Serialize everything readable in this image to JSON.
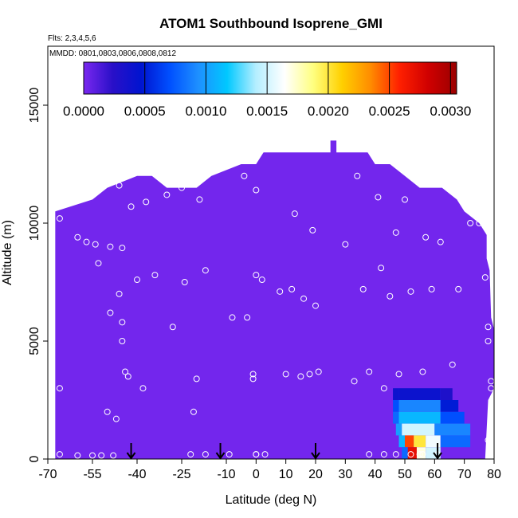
{
  "chart_data": {
    "type": "heatmap",
    "title": "ATOM1 Southbound Isoprene_GMI",
    "annotations": [
      "Flts: 2,3,4,5,6",
      "MMDD: 0801,0803,0806,0808,0812"
    ],
    "xlabel": "Latitude (deg N)",
    "ylabel": "Altitude (m)",
    "xlim": [
      -70,
      80
    ],
    "ylim": [
      0,
      17500
    ],
    "x_ticks": [
      "-70",
      "-55",
      "-40",
      "-25",
      "-10",
      "0",
      "10",
      "20",
      "30",
      "40",
      "50",
      "60",
      "70",
      "80"
    ],
    "x_tick_values": [
      -70,
      -55,
      -40,
      -25,
      -10,
      0,
      10,
      20,
      30,
      40,
      50,
      60,
      70,
      80
    ],
    "y_ticks": [
      "0",
      "5000",
      "10000",
      "15000"
    ],
    "y_tick_values": [
      0,
      5000,
      10000,
      15000
    ],
    "colorbar": {
      "min": 0,
      "max": 0.00305,
      "ticks": [
        "0.0000",
        "0.0005",
        "0.0010",
        "0.0015",
        "0.0020",
        "0.0025",
        "0.0030"
      ],
      "tick_values": [
        0,
        0.0005,
        0.001,
        0.0015,
        0.002,
        0.0025,
        0.003
      ],
      "colors": [
        "#7a28f0",
        "#2a10c8",
        "#0014d0",
        "#0050ff",
        "#1e90ff",
        "#00c8ff",
        "#b4eeff",
        "#ffffff",
        "#ffff80",
        "#ffd000",
        "#ff8c00",
        "#ff2000",
        "#d00000",
        "#9a0000"
      ]
    },
    "background_value": 2e-05,
    "domain_top": [
      [
        -67.5,
        10500
      ],
      [
        -55,
        11000
      ],
      [
        -50,
        11500
      ],
      [
        -40,
        12000
      ],
      [
        -35,
        12000
      ],
      [
        -30,
        11500
      ],
      [
        -20,
        11500
      ],
      [
        -15,
        12000
      ],
      [
        -5,
        12500
      ],
      [
        0,
        12500
      ],
      [
        2.5,
        13000
      ],
      [
        25,
        13000
      ],
      [
        25,
        13500
      ],
      [
        27,
        13500
      ],
      [
        27,
        13000
      ],
      [
        37.5,
        13000
      ],
      [
        40,
        12500
      ],
      [
        45,
        12500
      ],
      [
        50,
        12000
      ],
      [
        55,
        11500
      ],
      [
        62.5,
        11500
      ],
      [
        67.5,
        11000
      ],
      [
        70,
        10500
      ],
      [
        75,
        10000
      ],
      [
        77.5,
        9500
      ],
      [
        77.5,
        8500
      ],
      [
        78.5,
        8000
      ],
      [
        79,
        6000
      ],
      [
        80,
        5500
      ],
      [
        80,
        3000
      ],
      [
        78,
        2500
      ],
      [
        77,
        0
      ]
    ],
    "arrows_x": [
      -42,
      -12,
      20,
      61
    ],
    "enhancement": [
      {
        "lat_range": [
          46,
          48
        ],
        "alt_range": [
          2500,
          3000
        ],
        "value": 0.0004
      },
      {
        "lat_range": [
          48,
          62
        ],
        "alt_range": [
          2500,
          3000
        ],
        "value": 0.0004
      },
      {
        "lat_range": [
          62,
          66
        ],
        "alt_range": [
          2500,
          3000
        ],
        "value": 0.0003
      },
      {
        "lat_range": [
          46,
          48
        ],
        "alt_range": [
          2000,
          2500
        ],
        "value": 0.0007
      },
      {
        "lat_range": [
          48,
          62
        ],
        "alt_range": [
          2000,
          2500
        ],
        "value": 0.0009
      },
      {
        "lat_range": [
          62,
          68
        ],
        "alt_range": [
          2000,
          2500
        ],
        "value": 0.0005
      },
      {
        "lat_range": [
          46,
          48
        ],
        "alt_range": [
          1500,
          2000
        ],
        "value": 0.0008
      },
      {
        "lat_range": [
          48,
          62
        ],
        "alt_range": [
          1500,
          2000
        ],
        "value": 0.0011
      },
      {
        "lat_range": [
          62,
          70
        ],
        "alt_range": [
          1500,
          2000
        ],
        "value": 0.0007
      },
      {
        "lat_range": [
          47,
          49
        ],
        "alt_range": [
          1000,
          1500
        ],
        "value": 0.001
      },
      {
        "lat_range": [
          49,
          60
        ],
        "alt_range": [
          1000,
          1500
        ],
        "value": 0.0015
      },
      {
        "lat_range": [
          60,
          72
        ],
        "alt_range": [
          1000,
          1500
        ],
        "value": 0.0009
      },
      {
        "lat_range": [
          48,
          50
        ],
        "alt_range": [
          500,
          1000
        ],
        "value": 0.0011
      },
      {
        "lat_range": [
          50,
          53
        ],
        "alt_range": [
          500,
          1000
        ],
        "value": 0.0025
      },
      {
        "lat_range": [
          53,
          57
        ],
        "alt_range": [
          500,
          1000
        ],
        "value": 0.002
      },
      {
        "lat_range": [
          57,
          62
        ],
        "alt_range": [
          500,
          1000
        ],
        "value": 0.0016
      },
      {
        "lat_range": [
          62,
          72
        ],
        "alt_range": [
          500,
          1000
        ],
        "value": 0.0008
      },
      {
        "lat_range": [
          49,
          51
        ],
        "alt_range": [
          0,
          500
        ],
        "value": 0.0008
      },
      {
        "lat_range": [
          51,
          54
        ],
        "alt_range": [
          0,
          500
        ],
        "value": 0.0027
      },
      {
        "lat_range": [
          54,
          57
        ],
        "alt_range": [
          0,
          500
        ],
        "value": 0.0017
      },
      {
        "lat_range": [
          57,
          62
        ],
        "alt_range": [
          0,
          500
        ],
        "value": 0.0015
      }
    ],
    "obs_points": [
      [
        -66,
        10200
      ],
      [
        -60,
        9400
      ],
      [
        -57,
        9200
      ],
      [
        -54,
        9100
      ],
      [
        -49,
        9000
      ],
      [
        -45,
        8950
      ],
      [
        -53,
        8300
      ],
      [
        -50,
        2000
      ],
      [
        -47,
        1700
      ],
      [
        -60,
        150
      ],
      [
        -55,
        150
      ],
      [
        -52,
        150
      ],
      [
        -48,
        150
      ],
      [
        -46,
        11600
      ],
      [
        -42,
        10700
      ],
      [
        -37,
        10900
      ],
      [
        -30,
        11200
      ],
      [
        -25,
        11500
      ],
      [
        -19,
        11000
      ],
      [
        -40,
        7600
      ],
      [
        -34,
        7800
      ],
      [
        -24,
        7500
      ],
      [
        -17,
        8000
      ],
      [
        -46,
        7000
      ],
      [
        -49,
        6200
      ],
      [
        -45,
        5800
      ],
      [
        -45,
        5000
      ],
      [
        -28,
        5600
      ],
      [
        -44,
        3700
      ],
      [
        -43,
        3500
      ],
      [
        -38,
        3000
      ],
      [
        -20,
        3400
      ],
      [
        -21,
        2000
      ],
      [
        -22,
        200
      ],
      [
        -17,
        200
      ],
      [
        -9,
        200
      ],
      [
        -3,
        6000
      ],
      [
        -8,
        6000
      ],
      [
        -4,
        12000
      ],
      [
        0,
        11400
      ],
      [
        0,
        7800
      ],
      [
        2,
        7600
      ],
      [
        8,
        7100
      ],
      [
        -1,
        3600
      ],
      [
        -1,
        3400
      ],
      [
        0,
        200
      ],
      [
        0,
        200
      ],
      [
        3,
        200
      ],
      [
        10,
        3600
      ],
      [
        15,
        3500
      ],
      [
        18,
        3600
      ],
      [
        21,
        3700
      ],
      [
        12,
        7200
      ],
      [
        16,
        6800
      ],
      [
        20,
        6500
      ],
      [
        13,
        10400
      ],
      [
        19,
        9700
      ],
      [
        30,
        9100
      ],
      [
        33,
        3300
      ],
      [
        36,
        7200
      ],
      [
        34,
        12000
      ],
      [
        41,
        11100
      ],
      [
        42,
        8100
      ],
      [
        45,
        6900
      ],
      [
        47,
        9600
      ],
      [
        50,
        11000
      ],
      [
        52,
        7100
      ],
      [
        57,
        9400
      ],
      [
        62,
        9200
      ],
      [
        59,
        7200
      ],
      [
        68,
        7200
      ],
      [
        70,
        11400
      ],
      [
        72,
        10000
      ],
      [
        75,
        10000
      ],
      [
        77,
        7700
      ],
      [
        78,
        5600
      ],
      [
        78,
        5000
      ],
      [
        79,
        3300
      ],
      [
        79,
        3000
      ],
      [
        78,
        800
      ],
      [
        66,
        4000
      ],
      [
        56,
        3700
      ],
      [
        48,
        3600
      ],
      [
        38,
        3700
      ],
      [
        43,
        3000
      ],
      [
        38,
        200
      ],
      [
        43,
        200
      ],
      [
        47,
        200
      ],
      [
        52,
        200
      ],
      [
        55,
        200
      ],
      [
        56,
        200
      ],
      [
        61,
        200
      ],
      [
        -66,
        3000
      ],
      [
        -66,
        200
      ]
    ]
  }
}
